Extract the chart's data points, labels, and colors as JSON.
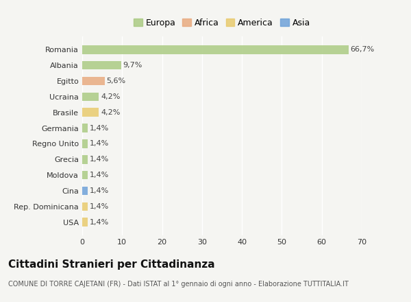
{
  "categories": [
    "Romania",
    "Albania",
    "Egitto",
    "Ucraina",
    "Brasile",
    "Germania",
    "Regno Unito",
    "Grecia",
    "Moldova",
    "Cina",
    "Rep. Dominicana",
    "USA"
  ],
  "values": [
    66.7,
    9.7,
    5.6,
    4.2,
    4.2,
    1.4,
    1.4,
    1.4,
    1.4,
    1.4,
    1.4,
    1.4
  ],
  "labels": [
    "66,7%",
    "9,7%",
    "5,6%",
    "4,2%",
    "4,2%",
    "1,4%",
    "1,4%",
    "1,4%",
    "1,4%",
    "1,4%",
    "1,4%",
    "1,4%"
  ],
  "colors": [
    "#a8c97f",
    "#a8c97f",
    "#e8a87c",
    "#a8c97f",
    "#e8c96a",
    "#a8c97f",
    "#a8c97f",
    "#a8c97f",
    "#a8c97f",
    "#6a9fd8",
    "#e8c96a",
    "#e8c96a"
  ],
  "legend_labels": [
    "Europa",
    "Africa",
    "America",
    "Asia"
  ],
  "legend_colors": [
    "#a8c97f",
    "#e8a87c",
    "#e8c96a",
    "#6a9fd8"
  ],
  "title": "Cittadini Stranieri per Cittadinanza",
  "subtitle": "COMUNE DI TORRE CAJETANI (FR) - Dati ISTAT al 1° gennaio di ogni anno - Elaborazione TUTTITALIA.IT",
  "xlim": [
    0,
    70
  ],
  "xticks": [
    0,
    10,
    20,
    30,
    40,
    50,
    60,
    70
  ],
  "background_color": "#f5f5f2",
  "bar_height": 0.55,
  "title_fontsize": 11,
  "subtitle_fontsize": 7,
  "tick_fontsize": 8,
  "label_fontsize": 8,
  "legend_fontsize": 9
}
